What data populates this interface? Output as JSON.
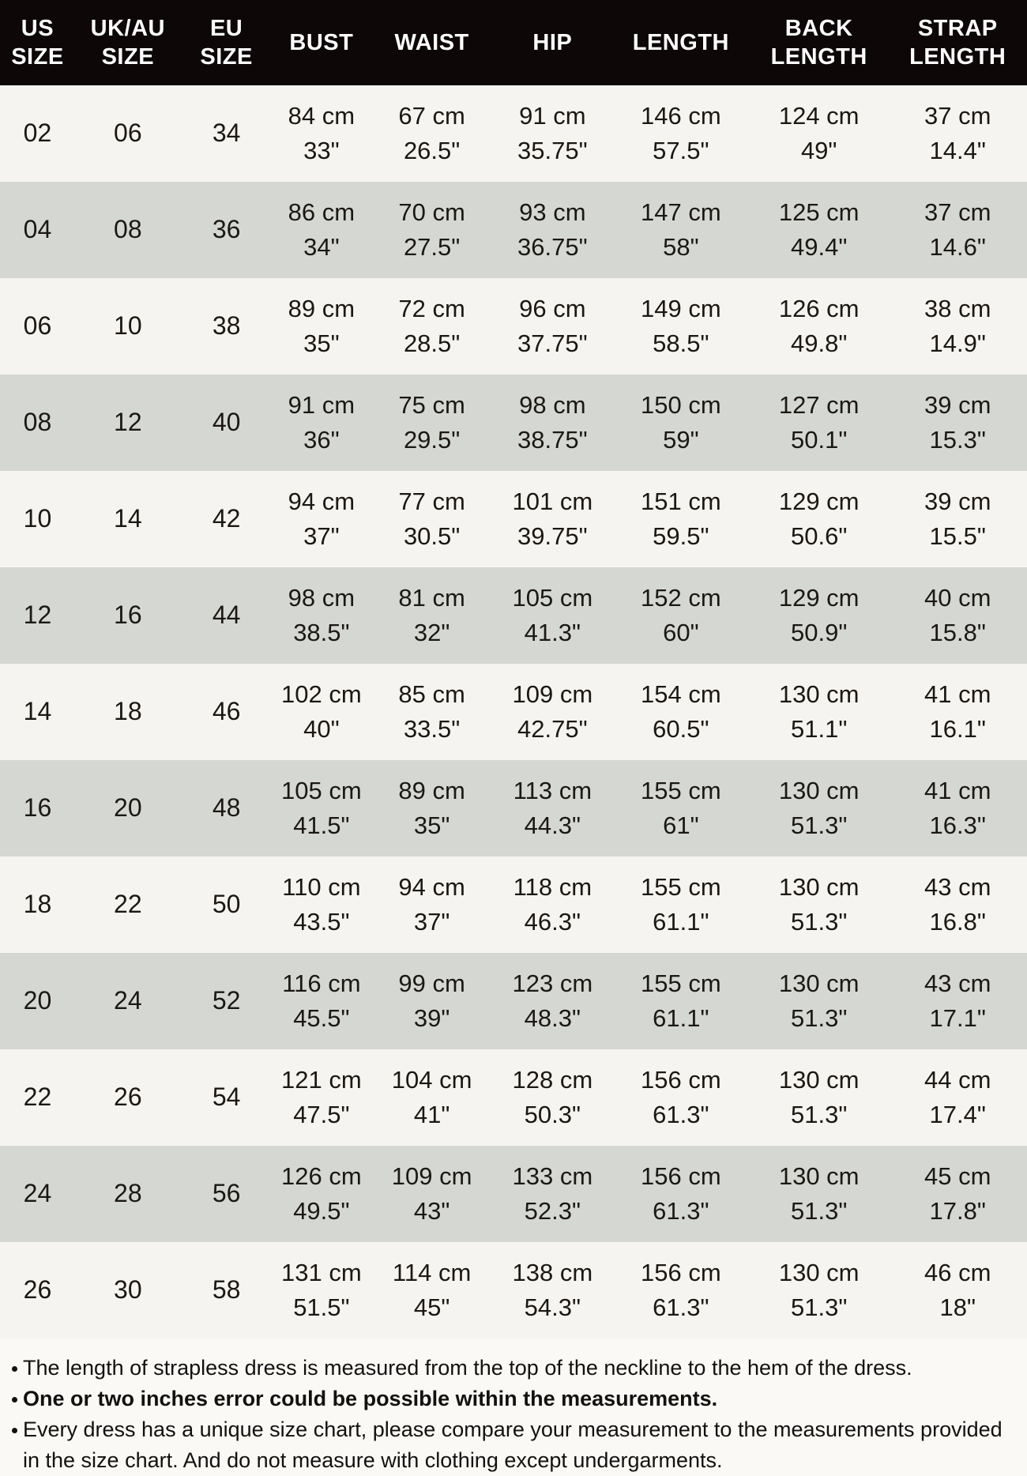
{
  "colors": {
    "header_bg": "#0d0708",
    "header_text": "#ffffff",
    "row_odd_bg": "#f6f4f0",
    "row_even_bg": "#d5d7d3",
    "body_text": "#1b1814",
    "page_bg": "#faf9f6"
  },
  "chart_data": {
    "type": "table",
    "title": "Dress size chart",
    "columns": [
      {
        "id": "us-size",
        "label": "US\nSIZE"
      },
      {
        "id": "uk-au-size",
        "label": "UK/AU\nSIZE"
      },
      {
        "id": "eu-size",
        "label": "EU\nSIZE"
      },
      {
        "id": "bust",
        "label": "BUST"
      },
      {
        "id": "waist",
        "label": "WAIST"
      },
      {
        "id": "hip",
        "label": "HIP"
      },
      {
        "id": "length",
        "label": "LENGTH"
      },
      {
        "id": "back-length",
        "label": "BACK\nLENGTH"
      },
      {
        "id": "strap-length",
        "label": "STRAP\nLENGTH"
      }
    ],
    "rows": [
      [
        [
          "02"
        ],
        [
          "06"
        ],
        [
          "34"
        ],
        [
          "84 cm",
          "33\""
        ],
        [
          "67 cm",
          "26.5\""
        ],
        [
          "91 cm",
          "35.75\""
        ],
        [
          "146 cm",
          "57.5\""
        ],
        [
          "124 cm",
          "49\""
        ],
        [
          "37 cm",
          "14.4\""
        ]
      ],
      [
        [
          "04"
        ],
        [
          "08"
        ],
        [
          "36"
        ],
        [
          "86 cm",
          "34\""
        ],
        [
          "70 cm",
          "27.5\""
        ],
        [
          "93 cm",
          "36.75\""
        ],
        [
          "147 cm",
          "58\""
        ],
        [
          "125 cm",
          "49.4\""
        ],
        [
          "37 cm",
          "14.6\""
        ]
      ],
      [
        [
          "06"
        ],
        [
          "10"
        ],
        [
          "38"
        ],
        [
          "89 cm",
          "35\""
        ],
        [
          "72 cm",
          "28.5\""
        ],
        [
          "96 cm",
          "37.75\""
        ],
        [
          "149 cm",
          "58.5\""
        ],
        [
          "126 cm",
          "49.8\""
        ],
        [
          "38 cm",
          "14.9\""
        ]
      ],
      [
        [
          "08"
        ],
        [
          "12"
        ],
        [
          "40"
        ],
        [
          "91 cm",
          "36\""
        ],
        [
          "75 cm",
          "29.5\""
        ],
        [
          "98 cm",
          "38.75\""
        ],
        [
          "150 cm",
          "59\""
        ],
        [
          "127 cm",
          "50.1\""
        ],
        [
          "39 cm",
          "15.3\""
        ]
      ],
      [
        [
          "10"
        ],
        [
          "14"
        ],
        [
          "42"
        ],
        [
          "94 cm",
          "37\""
        ],
        [
          "77 cm",
          "30.5\""
        ],
        [
          "101 cm",
          "39.75\""
        ],
        [
          "151 cm",
          "59.5\""
        ],
        [
          "129 cm",
          "50.6\""
        ],
        [
          "39 cm",
          "15.5\""
        ]
      ],
      [
        [
          "12"
        ],
        [
          "16"
        ],
        [
          "44"
        ],
        [
          "98 cm",
          "38.5\""
        ],
        [
          "81 cm",
          "32\""
        ],
        [
          "105 cm",
          "41.3\""
        ],
        [
          "152 cm",
          "60\""
        ],
        [
          "129 cm",
          "50.9\""
        ],
        [
          "40 cm",
          "15.8\""
        ]
      ],
      [
        [
          "14"
        ],
        [
          "18"
        ],
        [
          "46"
        ],
        [
          "102 cm",
          "40\""
        ],
        [
          "85 cm",
          "33.5\""
        ],
        [
          "109 cm",
          "42.75\""
        ],
        [
          "154 cm",
          "60.5\""
        ],
        [
          "130 cm",
          "51.1\""
        ],
        [
          "41 cm",
          "16.1\""
        ]
      ],
      [
        [
          "16"
        ],
        [
          "20"
        ],
        [
          "48"
        ],
        [
          "105 cm",
          "41.5\""
        ],
        [
          "89 cm",
          "35\""
        ],
        [
          "113 cm",
          "44.3\""
        ],
        [
          "155 cm",
          "61\""
        ],
        [
          "130 cm",
          "51.3\""
        ],
        [
          "41 cm",
          "16.3\""
        ]
      ],
      [
        [
          "18"
        ],
        [
          "22"
        ],
        [
          "50"
        ],
        [
          "110 cm",
          "43.5\""
        ],
        [
          "94 cm",
          "37\""
        ],
        [
          "118 cm",
          "46.3\""
        ],
        [
          "155 cm",
          "61.1\""
        ],
        [
          "130 cm",
          "51.3\""
        ],
        [
          "43 cm",
          "16.8\""
        ]
      ],
      [
        [
          "20"
        ],
        [
          "24"
        ],
        [
          "52"
        ],
        [
          "116 cm",
          "45.5\""
        ],
        [
          "99 cm",
          "39\""
        ],
        [
          "123 cm",
          "48.3\""
        ],
        [
          "155 cm",
          "61.1\""
        ],
        [
          "130 cm",
          "51.3\""
        ],
        [
          "43 cm",
          "17.1\""
        ]
      ],
      [
        [
          "22"
        ],
        [
          "26"
        ],
        [
          "54"
        ],
        [
          "121 cm",
          "47.5\""
        ],
        [
          "104 cm",
          "41\""
        ],
        [
          "128 cm",
          "50.3\""
        ],
        [
          "156 cm",
          "61.3\""
        ],
        [
          "130 cm",
          "51.3\""
        ],
        [
          "44 cm",
          "17.4\""
        ]
      ],
      [
        [
          "24"
        ],
        [
          "28"
        ],
        [
          "56"
        ],
        [
          "126 cm",
          "49.5\""
        ],
        [
          "109 cm",
          "43\""
        ],
        [
          "133 cm",
          "52.3\""
        ],
        [
          "156 cm",
          "61.3\""
        ],
        [
          "130 cm",
          "51.3\""
        ],
        [
          "45 cm",
          "17.8\""
        ]
      ],
      [
        [
          "26"
        ],
        [
          "30"
        ],
        [
          "58"
        ],
        [
          "131 cm",
          "51.5\""
        ],
        [
          "114 cm",
          "45\""
        ],
        [
          "138 cm",
          "54.3\""
        ],
        [
          "156 cm",
          "61.3\""
        ],
        [
          "130 cm",
          "51.3\""
        ],
        [
          "46 cm",
          "18\""
        ]
      ]
    ]
  },
  "notes": [
    {
      "text": "The length of strapless dress is measured from the top of the neckline to the hem of the dress.",
      "bold": false
    },
    {
      "text": "One or two inches error could be possible within the measurements.",
      "bold": true
    },
    {
      "text": "Every dress has a unique size chart, please compare your measurement to the measurements provided in the size chart. And do not measure with clothing except undergarments.",
      "bold": false
    }
  ]
}
